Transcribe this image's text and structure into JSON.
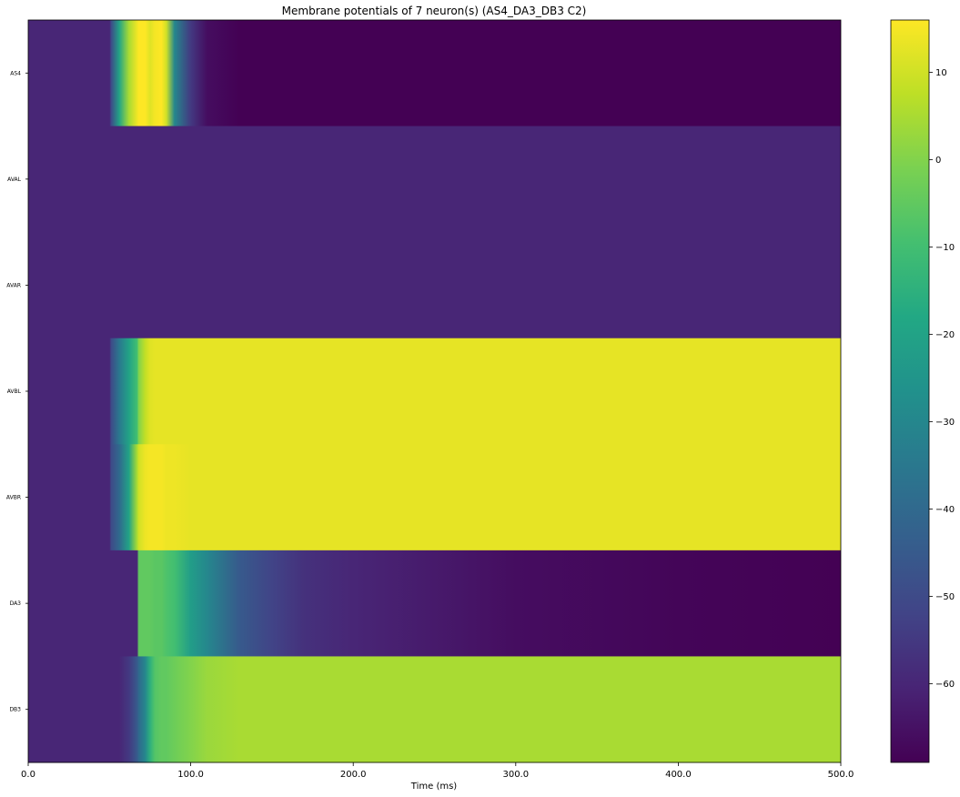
{
  "chart_data": {
    "type": "heatmap",
    "title": "Membrane potentials of 7 neuron(s) (AS4_DA3_DB3 C2)",
    "xlabel": "Time (ms)",
    "ylabel": "",
    "xlim": [
      0,
      500
    ],
    "xticks": [
      0,
      100,
      200,
      300,
      400,
      500
    ],
    "xtick_labels": [
      "0.0",
      "100.0",
      "200.0",
      "300.0",
      "400.0",
      "500.0"
    ],
    "rows": [
      "AS4",
      "AVAL",
      "AVAR",
      "AVBL",
      "AVBR",
      "DA3",
      "DB3"
    ],
    "colormap": "viridis",
    "vmin": -69,
    "vmax": 16,
    "colorbar_ticks": [
      10,
      0,
      -10,
      -20,
      -30,
      -40,
      -50,
      -60
    ],
    "colorbar_tick_labels": [
      "10",
      "0",
      "−10",
      "−20",
      "−30",
      "−40",
      "−50",
      "−60"
    ],
    "time_ms": [
      0,
      50,
      51,
      56,
      62,
      67,
      68,
      72,
      75,
      78,
      82,
      85,
      90,
      100,
      110,
      130,
      150,
      170,
      200,
      250,
      300,
      400,
      500
    ],
    "series": [
      {
        "name": "AS4",
        "values": [
          -60,
          -60,
          -50,
          -20,
          5,
          14,
          16,
          16,
          12,
          15,
          16,
          10,
          -30,
          -55,
          -66,
          -69,
          -69,
          -69,
          -69,
          -69,
          -69,
          -69,
          -69
        ]
      },
      {
        "name": "AVAL",
        "values": [
          -60,
          -60,
          -60,
          -60,
          -60,
          -60,
          -60,
          -60,
          -60,
          -60,
          -60,
          -60,
          -60,
          -60,
          -60,
          -60,
          -60,
          -60,
          -60,
          -60,
          -60,
          -60,
          -60
        ]
      },
      {
        "name": "AVAR",
        "values": [
          -60,
          -60,
          -60,
          -60,
          -60,
          -60,
          -60,
          -60,
          -60,
          -60,
          -60,
          -60,
          -60,
          -60,
          -60,
          -60,
          -60,
          -60,
          -60,
          -60,
          -60,
          -60,
          -60
        ]
      },
      {
        "name": "AVBL",
        "values": [
          -60,
          -60,
          -50,
          -35,
          -20,
          -10,
          0,
          8,
          12,
          13,
          13,
          13,
          13,
          13,
          13,
          13,
          13,
          13,
          13,
          13,
          13,
          13,
          13
        ]
      },
      {
        "name": "AVBR",
        "values": [
          -60,
          -60,
          -50,
          -40,
          -20,
          5,
          10,
          14,
          15,
          15,
          15,
          14,
          14,
          13,
          13,
          13,
          13,
          13,
          13,
          13,
          13,
          13,
          13
        ]
      },
      {
        "name": "DA3",
        "values": [
          -60,
          -60,
          -60,
          -60,
          -60,
          -60,
          -5,
          -5,
          -5,
          -6,
          -6,
          -8,
          -10,
          -22,
          -30,
          -45,
          -52,
          -57,
          -60,
          -63,
          -66,
          -68,
          -69
        ]
      },
      {
        "name": "DB3",
        "values": [
          -60,
          -60,
          -60,
          -60,
          -55,
          -45,
          -40,
          -30,
          -15,
          -7,
          -5,
          -5,
          -3,
          0,
          3,
          5,
          5,
          5,
          5,
          5,
          5,
          5,
          5
        ]
      }
    ]
  }
}
